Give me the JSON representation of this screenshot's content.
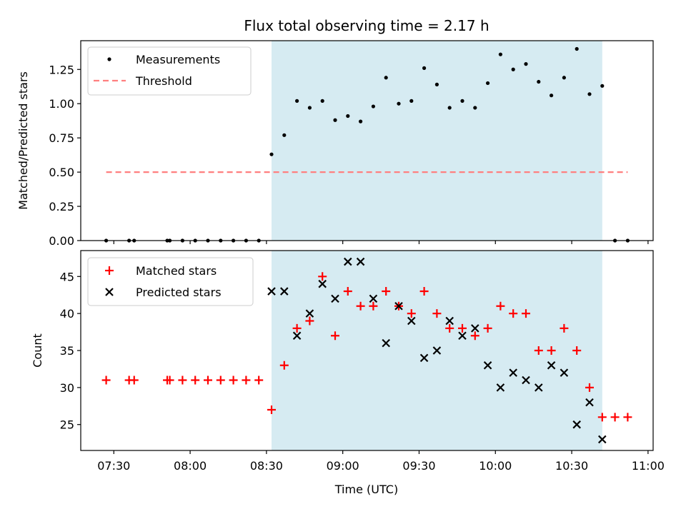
{
  "title": "Flux total observing time = 2.17 h",
  "x_tick_labels": [
    "07:30",
    "08:00",
    "08:30",
    "09:00",
    "09:30",
    "10:00",
    "10:30",
    "11:00"
  ],
  "colors": {
    "shade": "#add8e6",
    "measurements": "#000000",
    "threshold": "#ff7f7f",
    "matched": "#ff0000",
    "predicted": "#000000"
  },
  "chart_data": [
    {
      "type": "scatter",
      "panel": "top",
      "title": "Flux total observing time = 2.17 h",
      "xlabel": "",
      "ylabel": "Matched/Predicted stars",
      "xlim": [
        "07:17",
        "11:02"
      ],
      "ylim": [
        0,
        1.46
      ],
      "x_ticks": [
        "07:30",
        "08:00",
        "08:30",
        "09:00",
        "09:30",
        "10:00",
        "10:30",
        "11:00"
      ],
      "y_ticks": [
        "0.00",
        "0.25",
        "0.50",
        "0.75",
        "1.00",
        "1.25"
      ],
      "shaded_interval": [
        "08:32",
        "10:42"
      ],
      "legend": {
        "position": "top-left",
        "entries": [
          "Measurements",
          "Threshold"
        ]
      },
      "series": [
        {
          "name": "Measurements",
          "marker": "dot",
          "x": [
            "07:27",
            "07:36",
            "07:38",
            "07:51",
            "07:52",
            "07:57",
            "08:02",
            "08:07",
            "08:12",
            "08:17",
            "08:22",
            "08:27",
            "08:32",
            "08:37",
            "08:42",
            "08:47",
            "08:52",
            "08:57",
            "09:02",
            "09:07",
            "09:12",
            "09:17",
            "09:22",
            "09:27",
            "09:32",
            "09:37",
            "09:42",
            "09:47",
            "09:52",
            "09:57",
            "10:02",
            "10:07",
            "10:12",
            "10:17",
            "10:22",
            "10:27",
            "10:32",
            "10:37",
            "10:42",
            "10:47",
            "10:52"
          ],
          "y": [
            0,
            0,
            0,
            0,
            0,
            0,
            0,
            0,
            0,
            0,
            0,
            0,
            0.63,
            0.77,
            1.02,
            0.97,
            1.02,
            0.88,
            0.91,
            0.87,
            0.98,
            1.19,
            1.0,
            1.02,
            1.26,
            1.14,
            0.97,
            1.02,
            0.97,
            1.15,
            1.36,
            1.25,
            1.29,
            1.16,
            1.06,
            1.19,
            1.4,
            1.07,
            1.13,
            0,
            0
          ]
        },
        {
          "name": "Threshold",
          "style": "dashed",
          "x": [
            "07:27",
            "10:52"
          ],
          "y": [
            0.5,
            0.5
          ]
        }
      ]
    },
    {
      "type": "scatter",
      "panel": "bottom",
      "xlabel": "Time (UTC)",
      "ylabel": "Count",
      "xlim": [
        "07:17",
        "11:02"
      ],
      "ylim": [
        21.5,
        48.5
      ],
      "x_ticks": [
        "07:30",
        "08:00",
        "08:30",
        "09:00",
        "09:30",
        "10:00",
        "10:30",
        "11:00"
      ],
      "y_ticks": [
        "25",
        "30",
        "35",
        "40",
        "45"
      ],
      "shaded_interval": [
        "08:32",
        "10:42"
      ],
      "legend": {
        "position": "top-left",
        "entries": [
          "Matched stars",
          "Predicted stars"
        ]
      },
      "series": [
        {
          "name": "Matched stars",
          "marker": "plus",
          "x": [
            "07:27",
            "07:36",
            "07:38",
            "07:51",
            "07:52",
            "07:57",
            "08:02",
            "08:07",
            "08:12",
            "08:17",
            "08:22",
            "08:27",
            "08:32",
            "08:37",
            "08:42",
            "08:47",
            "08:52",
            "08:57",
            "09:02",
            "09:07",
            "09:12",
            "09:17",
            "09:22",
            "09:27",
            "09:32",
            "09:37",
            "09:42",
            "09:47",
            "09:52",
            "09:57",
            "10:02",
            "10:07",
            "10:12",
            "10:17",
            "10:22",
            "10:27",
            "10:32",
            "10:37",
            "10:42",
            "10:47",
            "10:52"
          ],
          "y": [
            31,
            31,
            31,
            31,
            31,
            31,
            31,
            31,
            31,
            31,
            31,
            31,
            27,
            33,
            38,
            39,
            45,
            37,
            43,
            41,
            41,
            43,
            41,
            40,
            43,
            40,
            38,
            38,
            37,
            38,
            41,
            40,
            40,
            35,
            35,
            38,
            35,
            30,
            26,
            26,
            26
          ]
        },
        {
          "name": "Predicted stars",
          "marker": "x",
          "x": [
            "08:32",
            "08:37",
            "08:42",
            "08:47",
            "08:52",
            "08:57",
            "09:02",
            "09:07",
            "09:12",
            "09:17",
            "09:22",
            "09:27",
            "09:32",
            "09:37",
            "09:42",
            "09:47",
            "09:52",
            "09:57",
            "10:02",
            "10:07",
            "10:12",
            "10:17",
            "10:22",
            "10:27",
            "10:32",
            "10:37",
            "10:42"
          ],
          "y": [
            43,
            43,
            37,
            40,
            44,
            42,
            47,
            47,
            42,
            36,
            41,
            39,
            34,
            35,
            39,
            37,
            38,
            33,
            30,
            32,
            31,
            30,
            33,
            32,
            25,
            28,
            23
          ]
        }
      ]
    }
  ]
}
